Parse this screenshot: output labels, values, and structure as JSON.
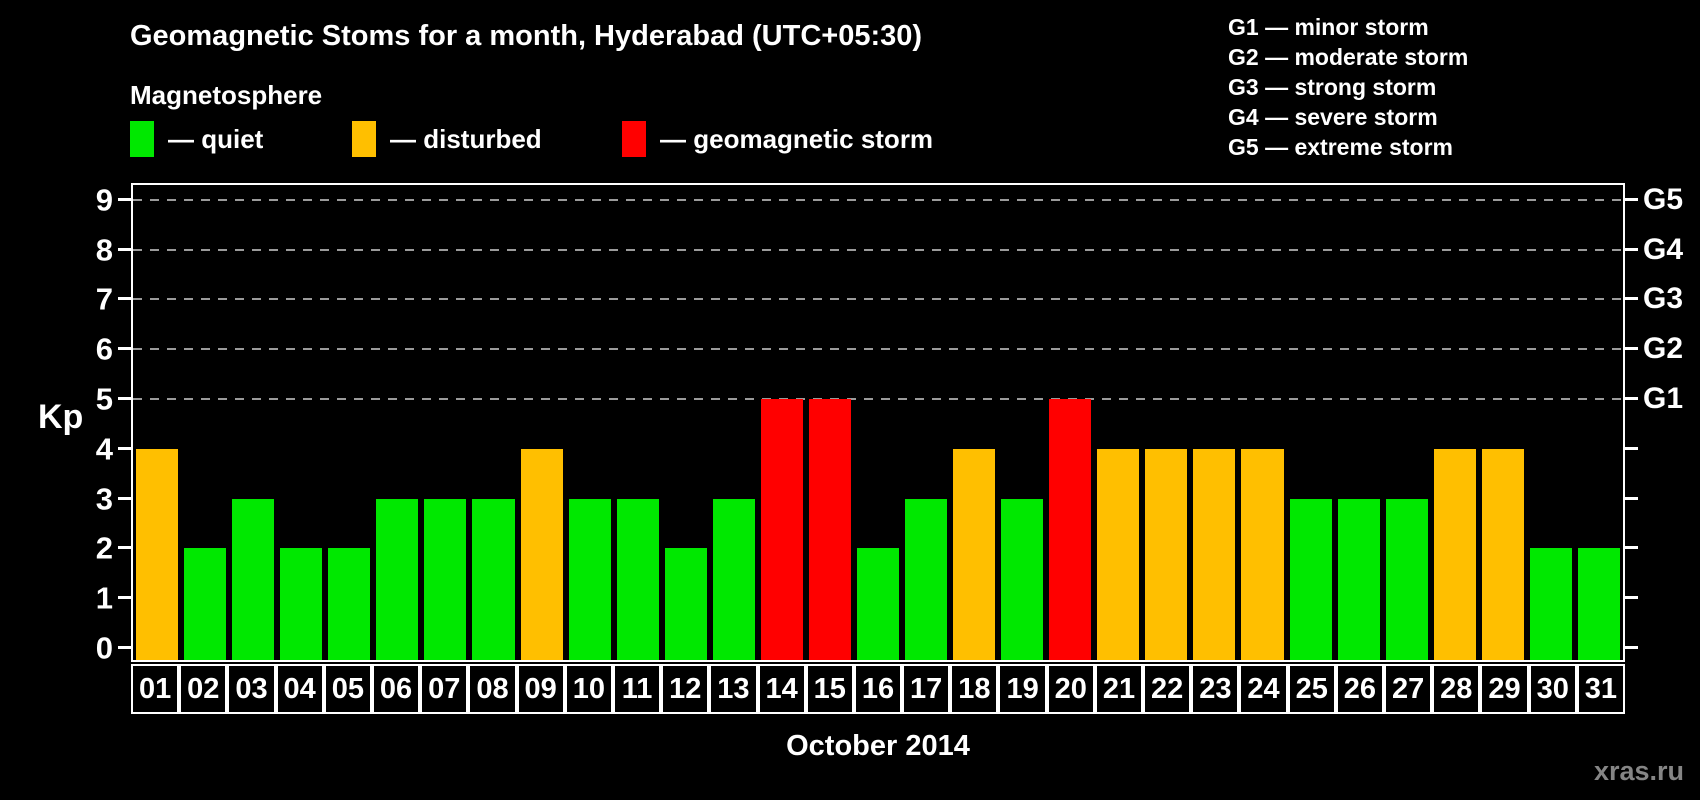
{
  "title": "Geomagnetic Stoms for a month, Hyderabad (UTC+05:30)",
  "legend": {
    "title": "Magnetosphere",
    "items": [
      {
        "label": "— quiet",
        "color": "#00e800",
        "meaning": "quiet"
      },
      {
        "label": "— disturbed",
        "color": "#ffbf00",
        "meaning": "disturbed"
      },
      {
        "label": "— geomagnetic storm",
        "color": "#ff0000",
        "meaning": "geomagnetic storm"
      }
    ]
  },
  "g_scale_legend": [
    "G1 — minor storm",
    "G2 — moderate storm",
    "G3 — strong storm",
    "G4 — severe storm",
    "G5 — extreme storm"
  ],
  "watermark": "xras.ru",
  "chart_data": {
    "type": "bar",
    "title": "Geomagnetic Stoms for a month, Hyderabad (UTC+05:30)",
    "xlabel": "October 2014",
    "ylabel": "Kp",
    "ylim": [
      0,
      9.5
    ],
    "yticks": [
      0,
      1,
      2,
      3,
      4,
      5,
      6,
      7,
      8,
      9
    ],
    "gridline_levels": [
      5,
      6,
      7,
      8,
      9
    ],
    "grid": "dashed horizontal at storm levels only",
    "legend_position": "top-left and top-right",
    "g_levels": [
      {
        "kp": 5,
        "label": "G1"
      },
      {
        "kp": 6,
        "label": "G2"
      },
      {
        "kp": 7,
        "label": "G3"
      },
      {
        "kp": 8,
        "label": "G4"
      },
      {
        "kp": 9,
        "label": "G5"
      }
    ],
    "categories": [
      "01",
      "02",
      "03",
      "04",
      "05",
      "06",
      "07",
      "08",
      "09",
      "10",
      "11",
      "12",
      "13",
      "14",
      "15",
      "16",
      "17",
      "18",
      "19",
      "20",
      "21",
      "22",
      "23",
      "24",
      "25",
      "26",
      "27",
      "28",
      "29",
      "30",
      "31"
    ],
    "values": [
      4,
      2,
      3,
      2,
      2,
      3,
      3,
      3,
      4,
      3,
      3,
      2,
      3,
      5,
      5,
      2,
      3,
      4,
      3,
      5,
      4,
      4,
      4,
      4,
      3,
      3,
      3,
      4,
      4,
      2,
      2
    ],
    "statuses": [
      "disturbed",
      "quiet",
      "quiet",
      "quiet",
      "quiet",
      "quiet",
      "quiet",
      "quiet",
      "disturbed",
      "quiet",
      "quiet",
      "quiet",
      "quiet",
      "storm",
      "storm",
      "quiet",
      "quiet",
      "disturbed",
      "quiet",
      "storm",
      "disturbed",
      "disturbed",
      "disturbed",
      "disturbed",
      "quiet",
      "quiet",
      "quiet",
      "disturbed",
      "disturbed",
      "quiet",
      "quiet"
    ],
    "colors": {
      "quiet": "#00e800",
      "disturbed": "#ffbf00",
      "storm": "#ff0000"
    }
  }
}
